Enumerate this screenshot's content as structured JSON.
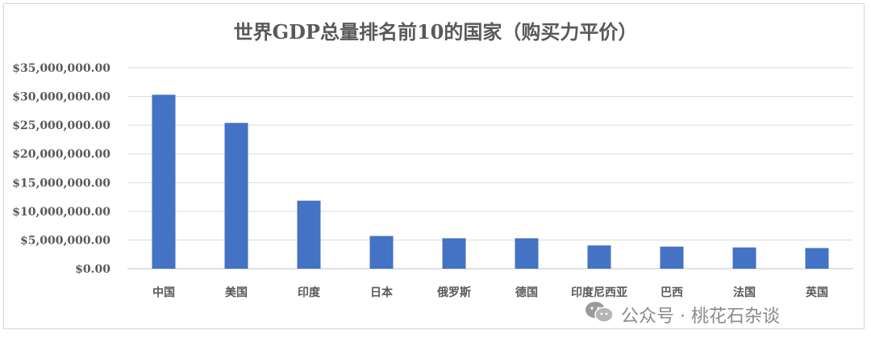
{
  "chart_data": {
    "type": "bar",
    "title": "世界GDP总量排名前10的国家（购买力平价）",
    "categories": [
      "中国",
      "美国",
      "印度",
      "日本",
      "俄罗斯",
      "德国",
      "印度尼西亚",
      "巴西",
      "法国",
      "英国"
    ],
    "values": [
      30300000,
      25400000,
      11850000,
      5700000,
      5300000,
      5300000,
      4050000,
      3850000,
      3700000,
      3600000
    ],
    "y_ticks": [
      "$0.00",
      "$5,000,000.00",
      "$10,000,000.00",
      "$15,000,000.00",
      "$20,000,000.00",
      "$25,000,000.00",
      "$30,000,000.00",
      "$35,000,000.00"
    ],
    "ylim": [
      0,
      35000000
    ],
    "grid": true,
    "bar_color": "#4472c4",
    "xlabel": "",
    "ylabel": ""
  },
  "watermark": {
    "text": "公众号 · 桃花石杂谈",
    "icon": "wechat-icon"
  }
}
